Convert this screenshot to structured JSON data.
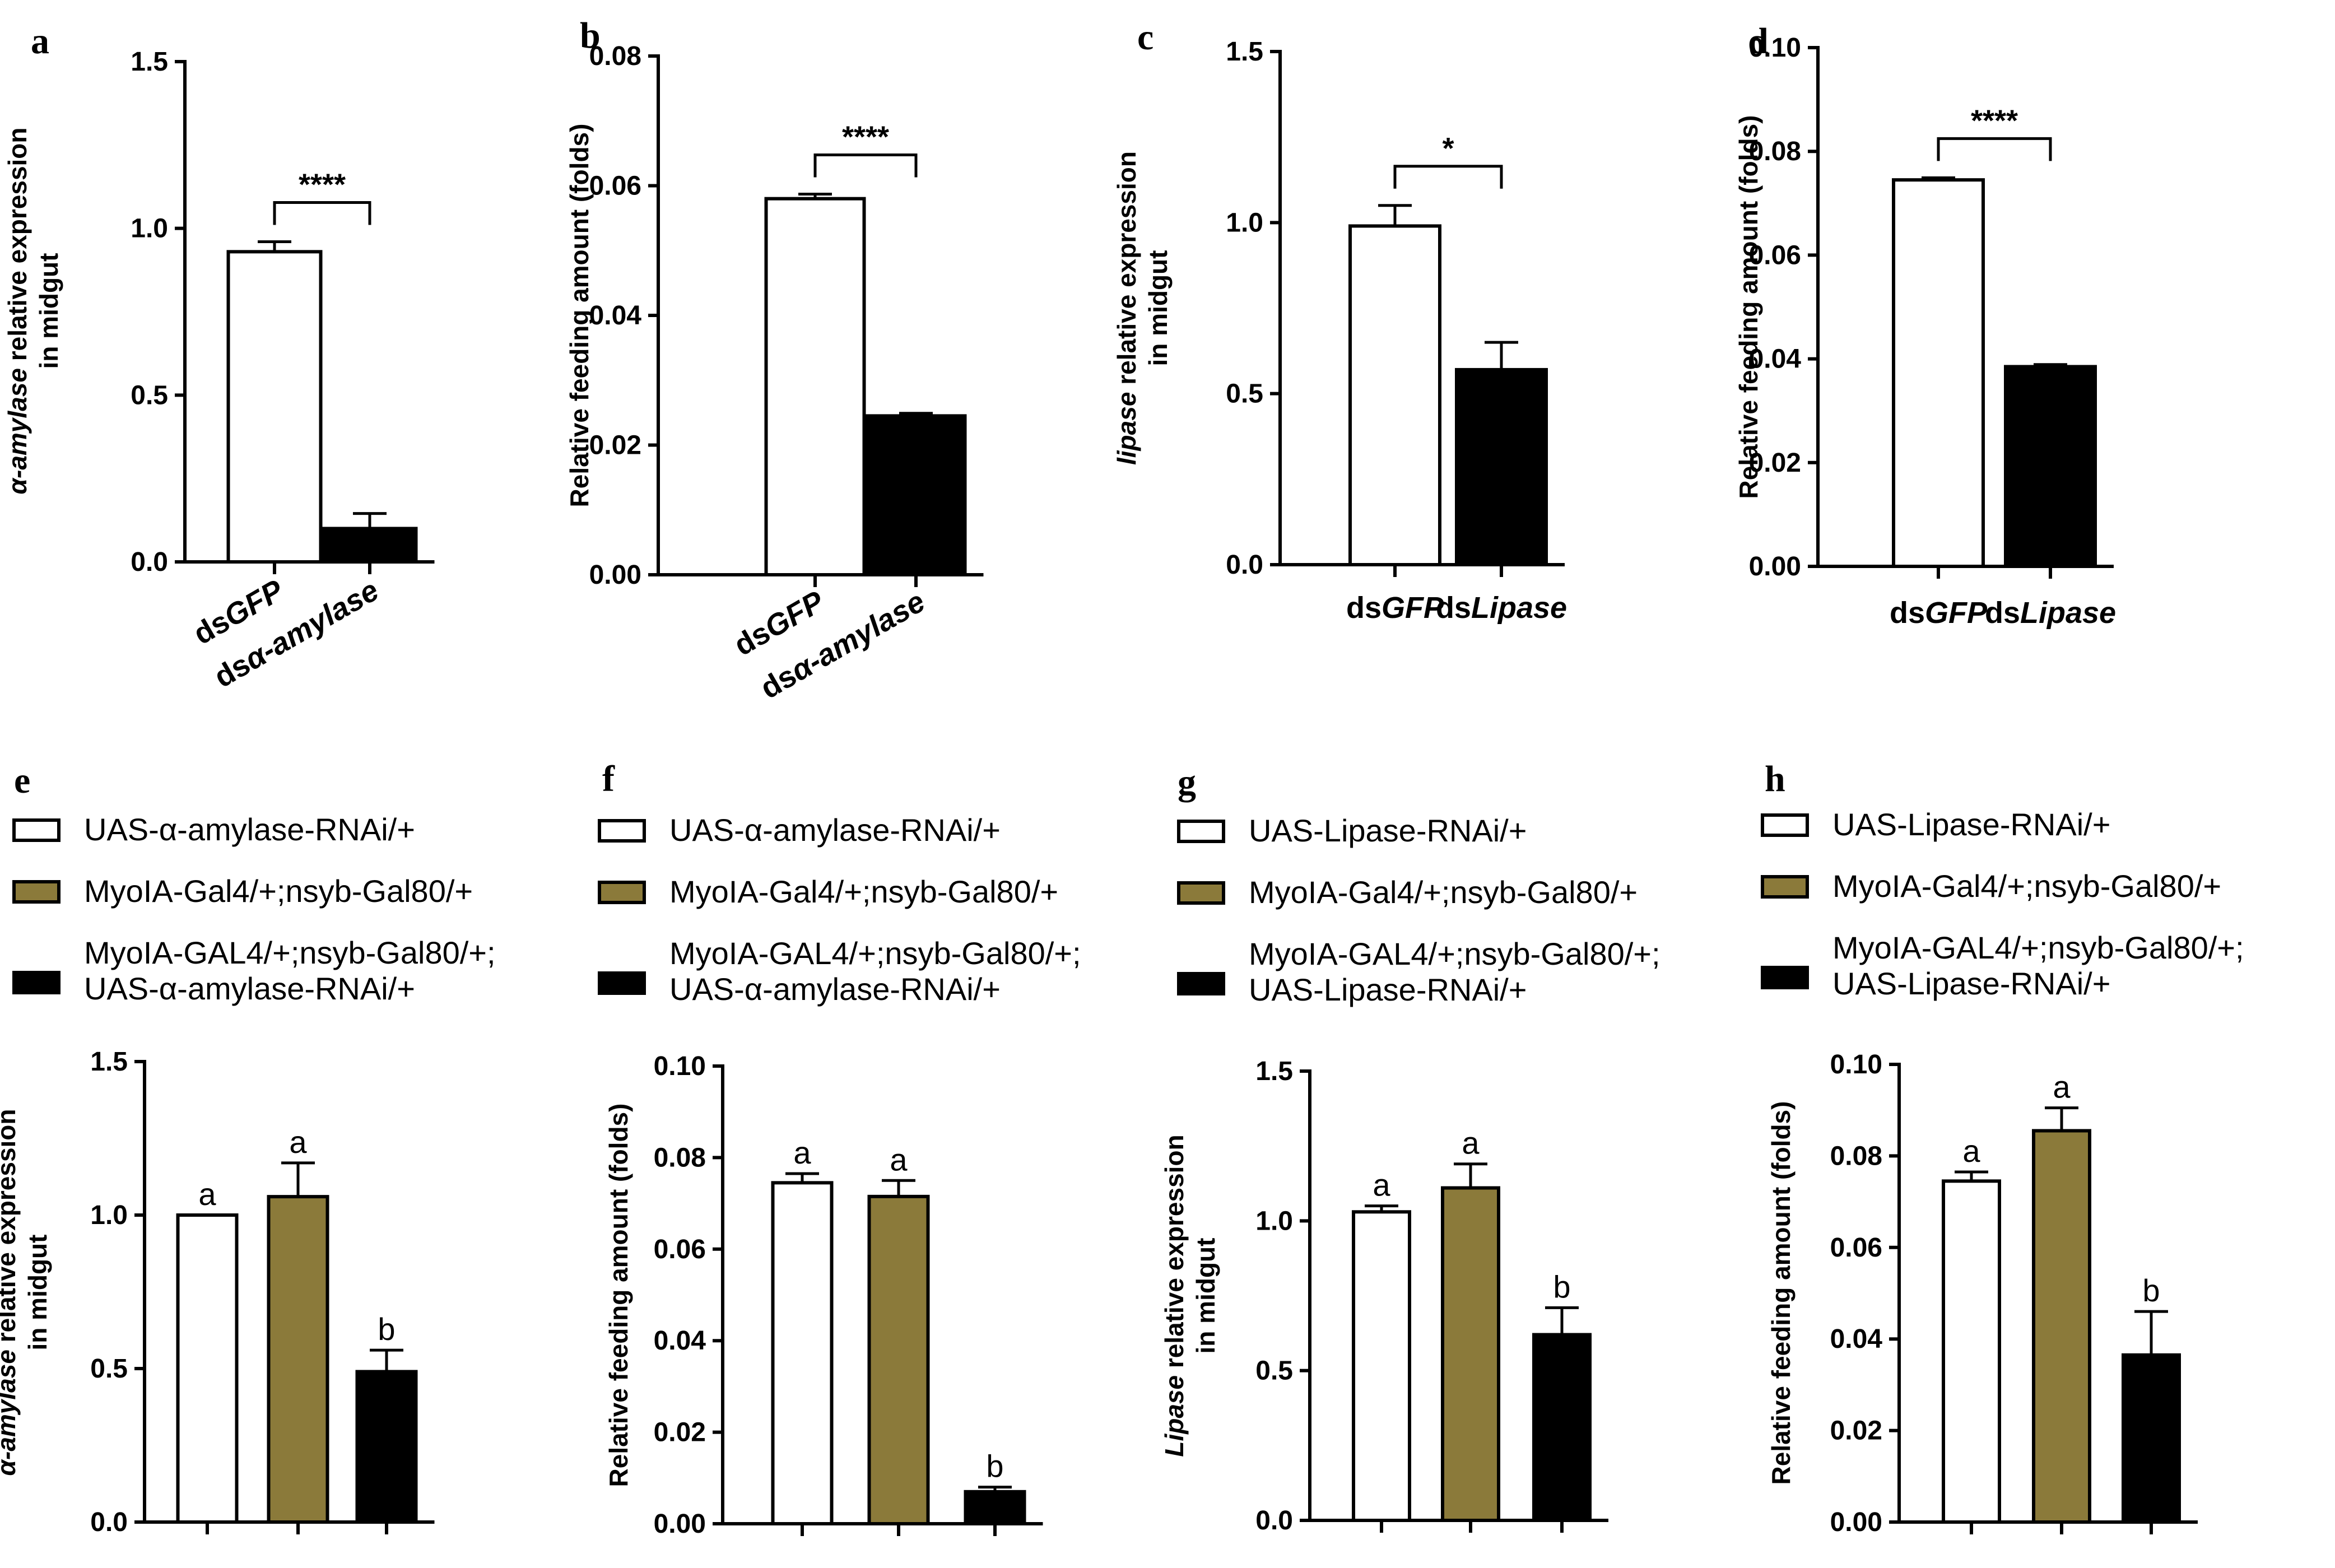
{
  "figure": {
    "colors": {
      "white": "#ffffff",
      "olive": "#8b7a3a",
      "black": "#000000"
    }
  },
  "chart_data": [
    {
      "panel": "a",
      "type": "bar",
      "ylabel": [
        "α-amylase relative expression",
        "in midgut"
      ],
      "ylim": [
        0,
        1.5
      ],
      "ticks": [
        "0.0",
        "0.5",
        "1.0",
        "1.5"
      ],
      "categories": [
        [
          "ds",
          "GFP"
        ],
        [
          "ds",
          "α-amylase"
        ]
      ],
      "values": [
        0.93,
        0.1
      ],
      "errors": [
        0.03,
        0.045
      ],
      "fills": [
        "white",
        "black"
      ],
      "significance": "****"
    },
    {
      "panel": "b",
      "type": "bar",
      "ylabel": [
        "Relative feeding amount (folds)"
      ],
      "ylim": [
        0,
        0.08
      ],
      "ticks": [
        "0.00",
        "0.02",
        "0.04",
        "0.06",
        "0.08"
      ],
      "categories": [
        [
          "ds",
          "GFP"
        ],
        [
          "ds",
          "α-amylase"
        ]
      ],
      "values": [
        0.058,
        0.0245
      ],
      "errors": [
        0.0007,
        0.0004
      ],
      "fills": [
        "white",
        "black"
      ],
      "significance": "****"
    },
    {
      "panel": "c",
      "type": "bar",
      "ylabel": [
        "lipase relative expression",
        "in midgut"
      ],
      "ylim": [
        0,
        1.5
      ],
      "ticks": [
        "0.0",
        "0.5",
        "1.0",
        "1.5"
      ],
      "categories": [
        [
          "ds",
          "GFP"
        ],
        [
          "ds",
          "Lipase"
        ]
      ],
      "values": [
        0.99,
        0.57
      ],
      "errors": [
        0.06,
        0.08
      ],
      "fills": [
        "white",
        "black"
      ],
      "significance": "*"
    },
    {
      "panel": "d",
      "type": "bar",
      "ylabel": [
        "Relative feeding amount (folds)"
      ],
      "ylim": [
        0,
        0.1
      ],
      "ticks": [
        "0.00",
        "0.02",
        "0.04",
        "0.06",
        "0.08",
        "0.10"
      ],
      "categories": [
        [
          "ds",
          "GFP"
        ],
        [
          "ds",
          "Lipase"
        ]
      ],
      "values": [
        0.0745,
        0.0385
      ],
      "errors": [
        0.0004,
        0.0004
      ],
      "fills": [
        "white",
        "black"
      ],
      "significance": "****"
    },
    {
      "panel": "e",
      "type": "bar",
      "ylabel": [
        "α-amylase relative expression",
        "in midgut"
      ],
      "ylim": [
        0,
        1.5
      ],
      "ticks": [
        "0.0",
        "0.5",
        "1.0",
        "1.5"
      ],
      "legend": [
        "UAS-α-amylase-RNAi/+",
        "MyoIA-Gal4/+;nsyb-Gal80/+",
        "MyoIA-GAL4/+;nsyb-Gal80/+;",
        "UAS-α-amylase-RNAi/+"
      ],
      "values": [
        1.0,
        1.06,
        0.49
      ],
      "errors": [
        0.0,
        0.11,
        0.07
      ],
      "groups": [
        "a",
        "a",
        "b"
      ],
      "fills": [
        "white",
        "olive",
        "black"
      ]
    },
    {
      "panel": "f",
      "type": "bar",
      "ylabel": [
        "Relative feeding amount (folds)"
      ],
      "ylim": [
        0,
        0.1
      ],
      "ticks": [
        "0.00",
        "0.02",
        "0.04",
        "0.06",
        "0.08",
        "0.10"
      ],
      "legend": [
        "UAS-α-amylase-RNAi/+",
        "MyoIA-Gal4/+;nsyb-Gal80/+",
        "MyoIA-GAL4/+;nsyb-Gal80/+;",
        "UAS-α-amylase-RNAi/+"
      ],
      "values": [
        0.0745,
        0.0715,
        0.007
      ],
      "errors": [
        0.002,
        0.0035,
        0.001
      ],
      "groups": [
        "a",
        "a",
        "b"
      ],
      "fills": [
        "white",
        "olive",
        "black"
      ]
    },
    {
      "panel": "g",
      "type": "bar",
      "ylabel": [
        "Lipase relative expression",
        "in midgut"
      ],
      "ylim": [
        0,
        1.5
      ],
      "ticks": [
        "0.0",
        "0.5",
        "1.0",
        "1.5"
      ],
      "legend": [
        "UAS-Lipase-RNAi/+",
        "MyoIA-Gal4/+;nsyb-Gal80/+",
        "MyoIA-GAL4/+;nsyb-Gal80/+;",
        "UAS-Lipase-RNAi/+"
      ],
      "values": [
        1.03,
        1.11,
        0.62
      ],
      "errors": [
        0.02,
        0.08,
        0.09
      ],
      "groups": [
        "a",
        "a",
        "b"
      ],
      "fills": [
        "white",
        "olive",
        "black"
      ]
    },
    {
      "panel": "h",
      "type": "bar",
      "ylabel": [
        "Relative feeding amount (folds)"
      ],
      "ylim": [
        0,
        0.1
      ],
      "ticks": [
        "0.00",
        "0.02",
        "0.04",
        "0.06",
        "0.08",
        "0.10"
      ],
      "legend": [
        "UAS-Lipase-RNAi/+",
        "MyoIA-Gal4/+;nsyb-Gal80/+",
        "MyoIA-GAL4/+;nsyb-Gal80/+;",
        "UAS-Lipase-RNAi/+"
      ],
      "values": [
        0.0745,
        0.0855,
        0.0365
      ],
      "errors": [
        0.002,
        0.005,
        0.0095
      ],
      "groups": [
        "a",
        "a",
        "b"
      ],
      "fills": [
        "white",
        "olive",
        "black"
      ]
    }
  ]
}
